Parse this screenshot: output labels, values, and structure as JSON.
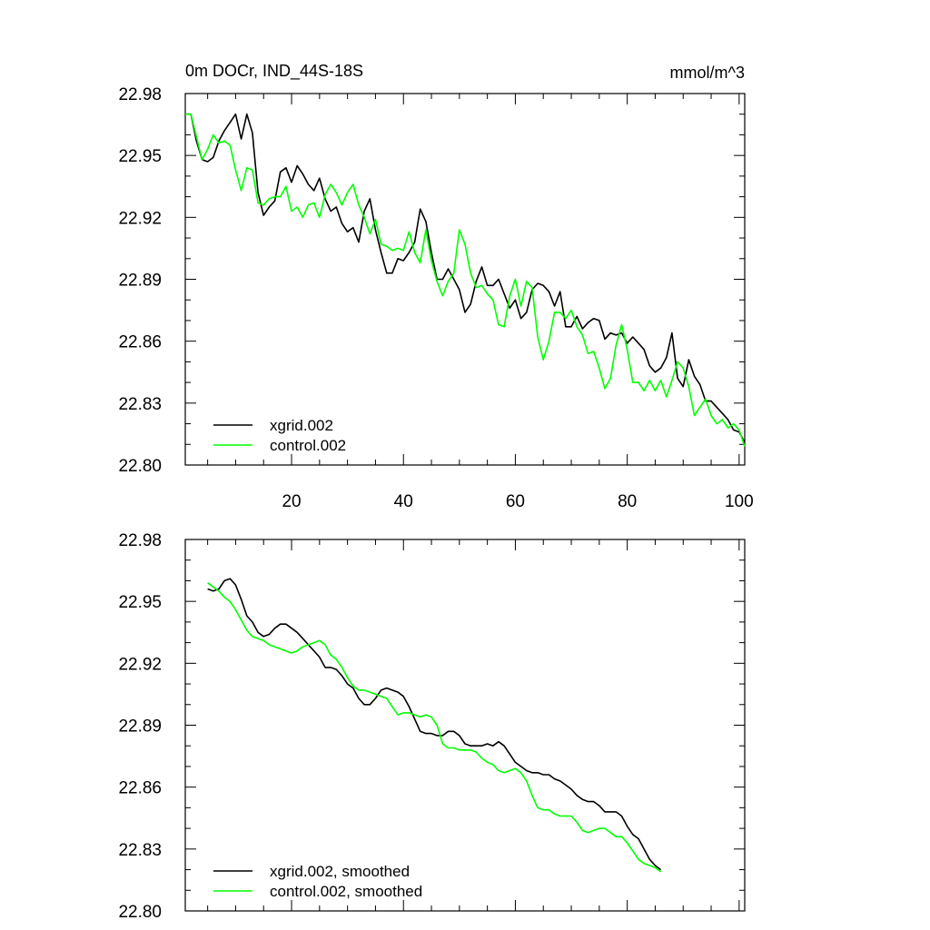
{
  "figure": {
    "title_left": "0m DOCr, IND_44S-18S",
    "title_right": "mmol/m^3"
  },
  "chart_data": [
    {
      "type": "line",
      "title": "0m DOCr, IND_44S-18S",
      "units": "mmol/m^3",
      "xlabel": "",
      "ylabel": "",
      "xlim": [
        1,
        101
      ],
      "ylim": [
        22.8,
        22.98
      ],
      "xticks": [
        20,
        40,
        60,
        80,
        100
      ],
      "xtick_labels": [
        "20",
        "40",
        "60",
        "80",
        "100"
      ],
      "yticks": [
        22.8,
        22.83,
        22.86,
        22.89,
        22.92,
        22.95,
        22.98
      ],
      "ytick_labels": [
        "22.80",
        "22.83",
        "22.86",
        "22.89",
        "22.92",
        "22.95",
        "22.98"
      ],
      "grid": false,
      "legend_position": "bottom-left",
      "x_start": 1,
      "series": [
        {
          "name": "xgrid.002",
          "color": "#000000",
          "values": [
            22.97,
            22.97,
            22.957,
            22.948,
            22.947,
            22.949,
            22.957,
            22.962,
            22.966,
            22.97,
            22.958,
            22.97,
            22.961,
            22.932,
            22.921,
            22.925,
            22.928,
            22.942,
            22.944,
            22.937,
            22.945,
            22.941,
            22.936,
            22.933,
            22.939,
            22.929,
            22.923,
            22.925,
            22.917,
            22.913,
            22.915,
            22.908,
            22.923,
            22.929,
            22.914,
            22.903,
            22.893,
            22.893,
            22.9,
            22.899,
            22.903,
            22.908,
            22.924,
            22.918,
            22.903,
            22.89,
            22.89,
            22.895,
            22.89,
            22.885,
            22.874,
            22.878,
            22.889,
            22.896,
            22.887,
            22.887,
            22.89,
            22.883,
            22.876,
            22.88,
            22.871,
            22.874,
            22.885,
            22.888,
            22.887,
            22.884,
            22.877,
            22.884,
            22.867,
            22.867,
            22.872,
            22.866,
            22.869,
            22.871,
            22.87,
            22.861,
            22.864,
            22.863,
            22.864,
            22.859,
            22.862,
            22.859,
            22.856,
            22.848,
            22.845,
            22.847,
            22.852,
            22.864,
            22.842,
            22.838,
            22.851,
            22.843,
            22.839,
            22.831,
            22.831,
            22.828,
            22.825,
            22.822,
            22.817,
            22.816,
            22.811
          ]
        },
        {
          "name": "control.002",
          "color": "#00ff00",
          "values": [
            22.97,
            22.97,
            22.959,
            22.948,
            22.953,
            22.96,
            22.956,
            22.957,
            22.955,
            22.943,
            22.933,
            22.944,
            22.943,
            22.927,
            22.926,
            22.929,
            22.93,
            22.93,
            22.935,
            22.923,
            22.925,
            22.92,
            22.926,
            22.927,
            22.92,
            22.931,
            22.936,
            22.932,
            22.926,
            22.932,
            22.936,
            22.926,
            22.92,
            22.912,
            22.919,
            22.907,
            22.906,
            22.904,
            22.905,
            22.904,
            22.913,
            22.903,
            22.898,
            22.914,
            22.899,
            22.889,
            22.882,
            22.889,
            22.893,
            22.914,
            22.907,
            22.893,
            22.886,
            22.887,
            22.883,
            22.88,
            22.868,
            22.867,
            22.882,
            22.89,
            22.877,
            22.889,
            22.886,
            22.862,
            22.851,
            22.86,
            22.874,
            22.874,
            22.871,
            22.875,
            22.867,
            22.863,
            22.854,
            22.855,
            22.847,
            22.837,
            22.842,
            22.858,
            22.868,
            22.856,
            22.84,
            22.84,
            22.836,
            22.841,
            22.836,
            22.841,
            22.833,
            22.841,
            22.85,
            22.847,
            22.838,
            22.824,
            22.828,
            22.832,
            22.824,
            22.82,
            22.822,
            22.818,
            22.82,
            22.817,
            22.809
          ]
        }
      ]
    },
    {
      "type": "line",
      "title": "",
      "xlabel": "",
      "ylabel": "",
      "xlim": [
        1,
        101
      ],
      "ylim": [
        22.8,
        22.98
      ],
      "xticks": [
        20,
        40,
        60,
        80,
        100
      ],
      "xtick_labels": [],
      "yticks": [
        22.8,
        22.83,
        22.86,
        22.89,
        22.92,
        22.95,
        22.98
      ],
      "ytick_labels": [
        "22.80",
        "22.83",
        "22.86",
        "22.89",
        "22.92",
        "22.95",
        "22.98"
      ],
      "grid": false,
      "legend_position": "bottom-left",
      "x_start": 5,
      "series": [
        {
          "name": "xgrid.002, smoothed",
          "color": "#000000",
          "values": [
            22.956,
            22.955,
            22.956,
            22.96,
            22.961,
            22.958,
            22.951,
            22.943,
            22.94,
            22.935,
            22.933,
            22.934,
            22.937,
            22.939,
            22.939,
            22.937,
            22.935,
            22.932,
            22.929,
            22.926,
            22.923,
            22.918,
            22.918,
            22.917,
            22.914,
            22.91,
            22.908,
            22.903,
            22.9,
            22.9,
            22.903,
            22.907,
            22.908,
            22.907,
            22.906,
            22.904,
            22.899,
            22.893,
            22.887,
            22.886,
            22.886,
            22.885,
            22.885,
            22.887,
            22.887,
            22.885,
            22.881,
            22.88,
            22.88,
            22.88,
            22.881,
            22.88,
            22.882,
            22.88,
            22.876,
            22.872,
            22.87,
            22.868,
            22.867,
            22.867,
            22.866,
            22.866,
            22.864,
            22.863,
            22.861,
            22.859,
            22.856,
            22.854,
            22.853,
            22.853,
            22.851,
            22.848,
            22.848,
            22.848,
            22.846,
            22.841,
            22.837,
            22.835,
            22.83,
            22.825,
            22.822,
            22.82
          ]
        },
        {
          "name": "control.002, smoothed",
          "color": "#00ff00",
          "values": [
            22.959,
            22.957,
            22.955,
            22.952,
            22.95,
            22.946,
            22.941,
            22.936,
            22.933,
            22.932,
            22.931,
            22.929,
            22.928,
            22.927,
            22.926,
            22.925,
            22.926,
            22.928,
            22.929,
            22.93,
            22.931,
            22.929,
            22.924,
            22.922,
            22.918,
            22.913,
            22.909,
            22.907,
            22.907,
            22.906,
            22.905,
            22.904,
            22.903,
            22.899,
            22.895,
            22.896,
            22.896,
            22.895,
            22.894,
            22.895,
            22.894,
            22.89,
            22.881,
            22.879,
            22.879,
            22.878,
            22.878,
            22.878,
            22.877,
            22.874,
            22.872,
            22.871,
            22.868,
            22.867,
            22.868,
            22.869,
            22.867,
            22.863,
            22.856,
            22.85,
            22.849,
            22.849,
            22.847,
            22.846,
            22.846,
            22.846,
            22.843,
            22.839,
            22.838,
            22.839,
            22.84,
            22.84,
            22.838,
            22.836,
            22.836,
            22.833,
            22.829,
            22.825,
            22.823,
            22.822,
            22.821,
            22.819
          ]
        }
      ]
    }
  ]
}
